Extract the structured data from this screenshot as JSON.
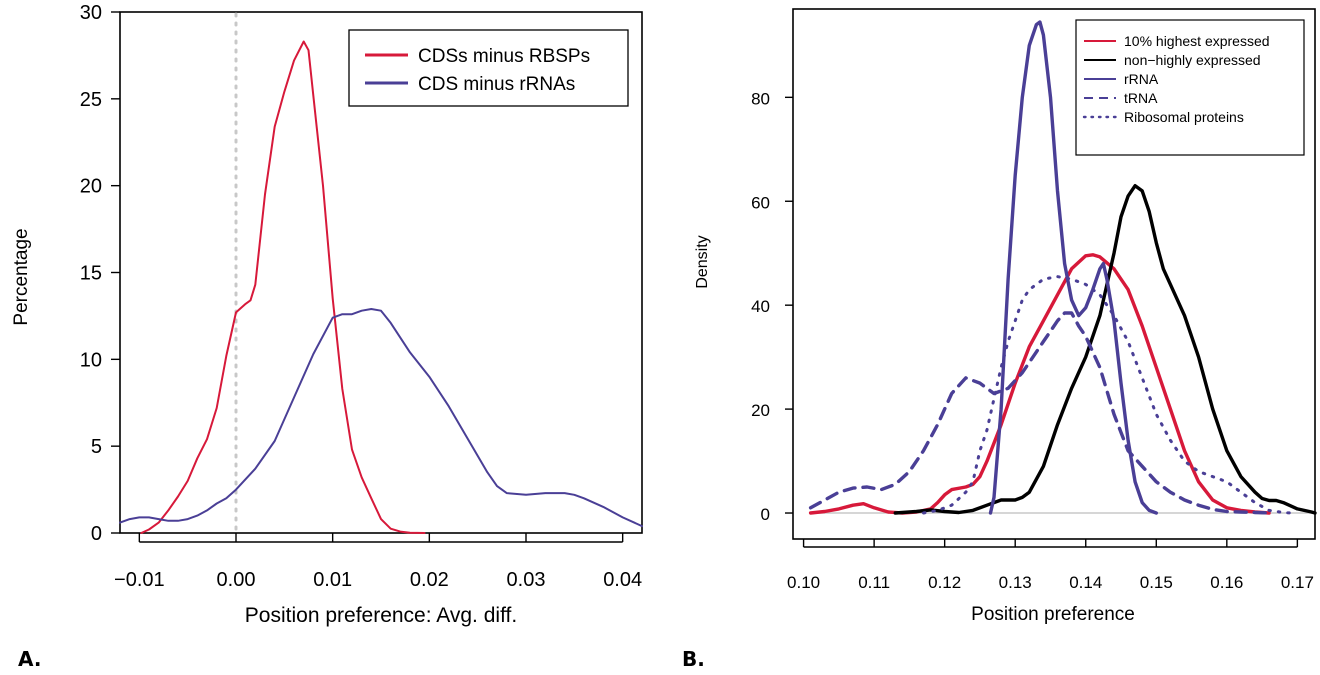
{
  "colors": {
    "red": "#d7193a",
    "blue": "#4a3f96",
    "black": "#000000",
    "grid": "#c8c8c8"
  },
  "panels": {
    "a": "A.",
    "b": "B."
  },
  "chart_data": [
    {
      "type": "line",
      "ylabel": "Percentage",
      "xlabel": "Position preference: Avg. diff.",
      "xlim": [
        -0.012,
        0.042
      ],
      "ylim": [
        0,
        30
      ],
      "xticks": [
        "−0.01",
        "0.00",
        "0.01",
        "0.02",
        "0.03",
        "0.04"
      ],
      "yticks": [
        "0",
        "5",
        "10",
        "15",
        "20",
        "25",
        "30"
      ],
      "vline": 0.0,
      "legend": {
        "position": "top-right",
        "entries": [
          "CDSs minus RBSPs",
          "CDS minus rRNAs"
        ]
      },
      "series": [
        {
          "name": "CDSs minus RBSPs",
          "color": "red",
          "points": [
            [
              -0.0098,
              0
            ],
            [
              -0.009,
              0.2
            ],
            [
              -0.008,
              0.6
            ],
            [
              -0.007,
              1.3
            ],
            [
              -0.006,
              2.1
            ],
            [
              -0.005,
              3.0
            ],
            [
              -0.004,
              4.3
            ],
            [
              -0.003,
              5.4
            ],
            [
              -0.002,
              7.2
            ],
            [
              -0.001,
              10.2
            ],
            [
              0.0,
              12.7
            ],
            [
              0.001,
              13.2
            ],
            [
              0.0015,
              13.4
            ],
            [
              0.002,
              14.3
            ],
            [
              0.003,
              19.5
            ],
            [
              0.004,
              23.4
            ],
            [
              0.005,
              25.4
            ],
            [
              0.006,
              27.2
            ],
            [
              0.007,
              28.3
            ],
            [
              0.0075,
              27.8
            ],
            [
              0.008,
              25.2
            ],
            [
              0.009,
              20.0
            ],
            [
              0.01,
              13.5
            ],
            [
              0.011,
              8.3
            ],
            [
              0.012,
              4.8
            ],
            [
              0.013,
              3.2
            ],
            [
              0.014,
              2.0
            ],
            [
              0.015,
              0.8
            ],
            [
              0.016,
              0.25
            ],
            [
              0.017,
              0.08
            ],
            [
              0.018,
              0.02
            ],
            [
              0.0195,
              0
            ]
          ]
        },
        {
          "name": "CDS minus rRNAs",
          "color": "blue",
          "points": [
            [
              -0.012,
              0.6
            ],
            [
              -0.011,
              0.8
            ],
            [
              -0.01,
              0.9
            ],
            [
              -0.009,
              0.9
            ],
            [
              -0.008,
              0.8
            ],
            [
              -0.007,
              0.7
            ],
            [
              -0.006,
              0.7
            ],
            [
              -0.005,
              0.8
            ],
            [
              -0.004,
              1.0
            ],
            [
              -0.003,
              1.3
            ],
            [
              -0.002,
              1.7
            ],
            [
              -0.001,
              2.0
            ],
            [
              0.0,
              2.5
            ],
            [
              0.002,
              3.7
            ],
            [
              0.004,
              5.3
            ],
            [
              0.006,
              7.8
            ],
            [
              0.008,
              10.3
            ],
            [
              0.01,
              12.4
            ],
            [
              0.011,
              12.6
            ],
            [
              0.012,
              12.6
            ],
            [
              0.013,
              12.8
            ],
            [
              0.014,
              12.9
            ],
            [
              0.015,
              12.8
            ],
            [
              0.016,
              12.1
            ],
            [
              0.018,
              10.4
            ],
            [
              0.02,
              9.0
            ],
            [
              0.022,
              7.3
            ],
            [
              0.024,
              5.4
            ],
            [
              0.026,
              3.5
            ],
            [
              0.027,
              2.7
            ],
            [
              0.028,
              2.3
            ],
            [
              0.03,
              2.2
            ],
            [
              0.032,
              2.3
            ],
            [
              0.033,
              2.3
            ],
            [
              0.034,
              2.3
            ],
            [
              0.035,
              2.2
            ],
            [
              0.036,
              2.0
            ],
            [
              0.038,
              1.5
            ],
            [
              0.04,
              0.9
            ],
            [
              0.042,
              0.4
            ]
          ]
        }
      ]
    },
    {
      "type": "line",
      "ylabel": "Density",
      "xlabel": "Position preference",
      "xlim": [
        0.0985,
        0.1725
      ],
      "ylim": [
        -5,
        97
      ],
      "xticks": [
        "0.10",
        "0.11",
        "0.12",
        "0.13",
        "0.14",
        "0.15",
        "0.16",
        "0.17"
      ],
      "yticks": [
        "0",
        "20",
        "40",
        "60",
        "80"
      ],
      "hline": 0,
      "legend": {
        "position": "top-right",
        "entries": [
          "10% highest expressed",
          "non−highly expressed",
          "rRNA",
          "tRNA",
          "Ribosomal proteins"
        ]
      },
      "series": [
        {
          "name": "10% highest expressed",
          "color": "red",
          "style": "solid-thick",
          "points": [
            [
              0.101,
              0
            ],
            [
              0.103,
              0.3
            ],
            [
              0.105,
              0.8
            ],
            [
              0.107,
              1.5
            ],
            [
              0.1085,
              1.8
            ],
            [
              0.11,
              1.0
            ],
            [
              0.112,
              0.2
            ],
            [
              0.114,
              0
            ],
            [
              0.116,
              0.2
            ],
            [
              0.118,
              0.8
            ],
            [
              0.119,
              2.0
            ],
            [
              0.12,
              3.5
            ],
            [
              0.121,
              4.5
            ],
            [
              0.123,
              5.0
            ],
            [
              0.124,
              5.5
            ],
            [
              0.125,
              7.0
            ],
            [
              0.126,
              10.0
            ],
            [
              0.128,
              17.0
            ],
            [
              0.13,
              25.0
            ],
            [
              0.132,
              32.0
            ],
            [
              0.134,
              37.0
            ],
            [
              0.136,
              42.0
            ],
            [
              0.138,
              47.0
            ],
            [
              0.14,
              49.5
            ],
            [
              0.141,
              49.7
            ],
            [
              0.142,
              49.3
            ],
            [
              0.144,
              47.0
            ],
            [
              0.146,
              43.0
            ],
            [
              0.148,
              36.0
            ],
            [
              0.15,
              28.0
            ],
            [
              0.152,
              20.0
            ],
            [
              0.154,
              12.0
            ],
            [
              0.156,
              6.0
            ],
            [
              0.158,
              2.5
            ],
            [
              0.16,
              1.0
            ],
            [
              0.162,
              0.5
            ],
            [
              0.164,
              0.2
            ],
            [
              0.166,
              0
            ]
          ]
        },
        {
          "name": "non−highly expressed",
          "color": "black",
          "style": "solid-thick",
          "points": [
            [
              0.113,
              0
            ],
            [
              0.116,
              0.3
            ],
            [
              0.118,
              0.6
            ],
            [
              0.12,
              0.3
            ],
            [
              0.122,
              0.1
            ],
            [
              0.124,
              0.5
            ],
            [
              0.126,
              1.5
            ],
            [
              0.128,
              2.5
            ],
            [
              0.13,
              2.5
            ],
            [
              0.131,
              3.0
            ],
            [
              0.132,
              4.0
            ],
            [
              0.134,
              9.0
            ],
            [
              0.136,
              17.0
            ],
            [
              0.138,
              24.0
            ],
            [
              0.14,
              30.0
            ],
            [
              0.142,
              38.0
            ],
            [
              0.144,
              50.0
            ],
            [
              0.145,
              57.0
            ],
            [
              0.146,
              61.0
            ],
            [
              0.147,
              63.0
            ],
            [
              0.148,
              62.0
            ],
            [
              0.149,
              58.0
            ],
            [
              0.15,
              52.0
            ],
            [
              0.151,
              47.0
            ],
            [
              0.152,
              44.0
            ],
            [
              0.154,
              38.0
            ],
            [
              0.156,
              30.0
            ],
            [
              0.158,
              20.0
            ],
            [
              0.16,
              12.0
            ],
            [
              0.162,
              7.0
            ],
            [
              0.164,
              4.0
            ],
            [
              0.165,
              2.8
            ],
            [
              0.166,
              2.4
            ],
            [
              0.167,
              2.4
            ],
            [
              0.168,
              2.0
            ],
            [
              0.17,
              0.8
            ],
            [
              0.172,
              0.2
            ],
            [
              0.1725,
              0
            ]
          ]
        },
        {
          "name": "rRNA",
          "color": "blue",
          "style": "solid-thick",
          "points": [
            [
              0.1265,
              0
            ],
            [
              0.127,
              3.0
            ],
            [
              0.128,
              20.0
            ],
            [
              0.129,
              45.0
            ],
            [
              0.13,
              65.0
            ],
            [
              0.131,
              80.0
            ],
            [
              0.132,
              90.0
            ],
            [
              0.133,
              94.0
            ],
            [
              0.1335,
              94.5
            ],
            [
              0.134,
              92.0
            ],
            [
              0.135,
              80.0
            ],
            [
              0.136,
              62.0
            ],
            [
              0.137,
              48.0
            ],
            [
              0.138,
              41.0
            ],
            [
              0.139,
              38.0
            ],
            [
              0.14,
              39.5
            ],
            [
              0.141,
              43.0
            ],
            [
              0.142,
              47.0
            ],
            [
              0.1425,
              48.0
            ],
            [
              0.143,
              45.0
            ],
            [
              0.144,
              37.0
            ],
            [
              0.145,
              25.0
            ],
            [
              0.146,
              14.0
            ],
            [
              0.147,
              6.0
            ],
            [
              0.148,
              2.0
            ],
            [
              0.149,
              0.5
            ],
            [
              0.15,
              0
            ]
          ]
        },
        {
          "name": "tRNA",
          "color": "blue",
          "style": "dashed",
          "points": [
            [
              0.101,
              1.0
            ],
            [
              0.103,
              2.5
            ],
            [
              0.105,
              4.0
            ],
            [
              0.107,
              4.8
            ],
            [
              0.109,
              5.0
            ],
            [
              0.111,
              4.5
            ],
            [
              0.113,
              5.5
            ],
            [
              0.115,
              8.0
            ],
            [
              0.117,
              12.0
            ],
            [
              0.119,
              17.0
            ],
            [
              0.121,
              23.0
            ],
            [
              0.123,
              26.0
            ],
            [
              0.125,
              25.0
            ],
            [
              0.127,
              23.0
            ],
            [
              0.129,
              24.0
            ],
            [
              0.131,
              27.0
            ],
            [
              0.133,
              31.0
            ],
            [
              0.134,
              33.0
            ],
            [
              0.135,
              35.0
            ],
            [
              0.136,
              37.0
            ],
            [
              0.137,
              38.5
            ],
            [
              0.138,
              38.5
            ],
            [
              0.139,
              36.0
            ],
            [
              0.14,
              34.0
            ],
            [
              0.142,
              28.0
            ],
            [
              0.144,
              19.0
            ],
            [
              0.146,
              12.0
            ],
            [
              0.148,
              9.0
            ],
            [
              0.15,
              6.0
            ],
            [
              0.152,
              4.0
            ],
            [
              0.154,
              2.5
            ],
            [
              0.156,
              1.5
            ],
            [
              0.158,
              0.7
            ],
            [
              0.16,
              0.3
            ],
            [
              0.162,
              0.2
            ],
            [
              0.164,
              0.1
            ],
            [
              0.166,
              0
            ]
          ]
        },
        {
          "name": "Ribosomal proteins",
          "color": "blue",
          "style": "dotted",
          "points": [
            [
              0.117,
              0
            ],
            [
              0.119,
              0.5
            ],
            [
              0.121,
              1.5
            ],
            [
              0.123,
              4.0
            ],
            [
              0.124,
              6.0
            ],
            [
              0.125,
              12.0
            ],
            [
              0.126,
              16.0
            ],
            [
              0.127,
              22.0
            ],
            [
              0.128,
              28.0
            ],
            [
              0.129,
              33.0
            ],
            [
              0.13,
              37.0
            ],
            [
              0.131,
              41.0
            ],
            [
              0.132,
              43.0
            ],
            [
              0.133,
              44.0
            ],
            [
              0.134,
              45.0
            ],
            [
              0.136,
              45.5
            ],
            [
              0.138,
              45.0
            ],
            [
              0.14,
              44.0
            ],
            [
              0.142,
              42.0
            ],
            [
              0.144,
              38.0
            ],
            [
              0.146,
              33.0
            ],
            [
              0.148,
              26.0
            ],
            [
              0.15,
              19.0
            ],
            [
              0.152,
              14.0
            ],
            [
              0.154,
              10.0
            ],
            [
              0.156,
              8.0
            ],
            [
              0.158,
              7.0
            ],
            [
              0.16,
              6.0
            ],
            [
              0.162,
              4.0
            ],
            [
              0.164,
              2.0
            ],
            [
              0.166,
              0.5
            ],
            [
              0.168,
              0.1
            ],
            [
              0.169,
              0
            ]
          ]
        }
      ]
    }
  ]
}
